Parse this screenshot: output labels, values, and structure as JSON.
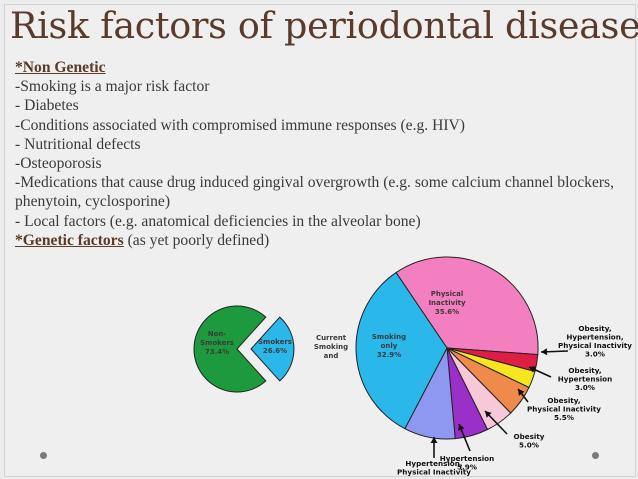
{
  "slide": {
    "title": "Risk factors of periodontal disease:",
    "non_genetic_heading": "*Non Genetic",
    "items": [
      "-Smoking is a major risk factor",
      "- Diabetes",
      "-Conditions associated with compromised immune responses (e.g. HIV)",
      "- Nutritional defects",
      "-Osteoporosis",
      "-Medications that cause drug induced gingival overgrowth (e.g. some calcium channel blockers, phenytoin, cyclosporine)",
      "-    Local factors (e.g. anatomical deficiencies in the alveolar bone)"
    ],
    "genetic_heading": "*Genetic factors",
    "genetic_note": " (as yet poorly defined)"
  },
  "colors": {
    "title": "#5a3a2a",
    "text": "#3a3a3a",
    "green": "#1e9a3e",
    "cyan": "#2ab7ea",
    "pink": "#f37fc0"
  },
  "chart_data": {
    "type": "pie",
    "population_pie": [
      {
        "label": [
          "Non-",
          "Smokers",
          "73.4%"
        ],
        "value": 73.4,
        "color": "#1e9a3e"
      },
      {
        "label": [
          "Smokers",
          "26.6%"
        ],
        "value": 26.6,
        "color": "#2ab7ea"
      }
    ],
    "smoker_label": [
      "Current",
      "Smoking",
      "and"
    ],
    "breakdown_pie": [
      {
        "label": [
          "Physical",
          "Inactivity",
          "35.6%"
        ],
        "value": 35.6,
        "color": "#f37fc0"
      },
      {
        "label": [
          "Obesity,",
          "Hypertension,",
          "Physical Inactivity",
          "3.0%"
        ],
        "value": 3.0,
        "color": "#e01e45"
      },
      {
        "label": [
          "Obesity,",
          "Hypertension",
          "3.0%"
        ],
        "value": 3.0,
        "color": "#f5e620"
      },
      {
        "label": [
          "Obesity,",
          "Physical Inactivity",
          "5.5%"
        ],
        "value": 5.5,
        "color": "#f08a4b"
      },
      {
        "label": [
          "Obesity",
          "5.0%"
        ],
        "value": 5.0,
        "color": "#f7c8d8"
      },
      {
        "label": [
          "Hypertension",
          "5.9%"
        ],
        "value": 5.9,
        "color": "#9b2fc9"
      },
      {
        "label": [
          "Hypertension,",
          "Physical Inactivity"
        ],
        "value": 9.1,
        "color": "#8f98f0"
      },
      {
        "label": [
          "Smoking",
          "only",
          "32.9%"
        ],
        "value": 32.9,
        "color": "#2ab7ea"
      }
    ]
  }
}
